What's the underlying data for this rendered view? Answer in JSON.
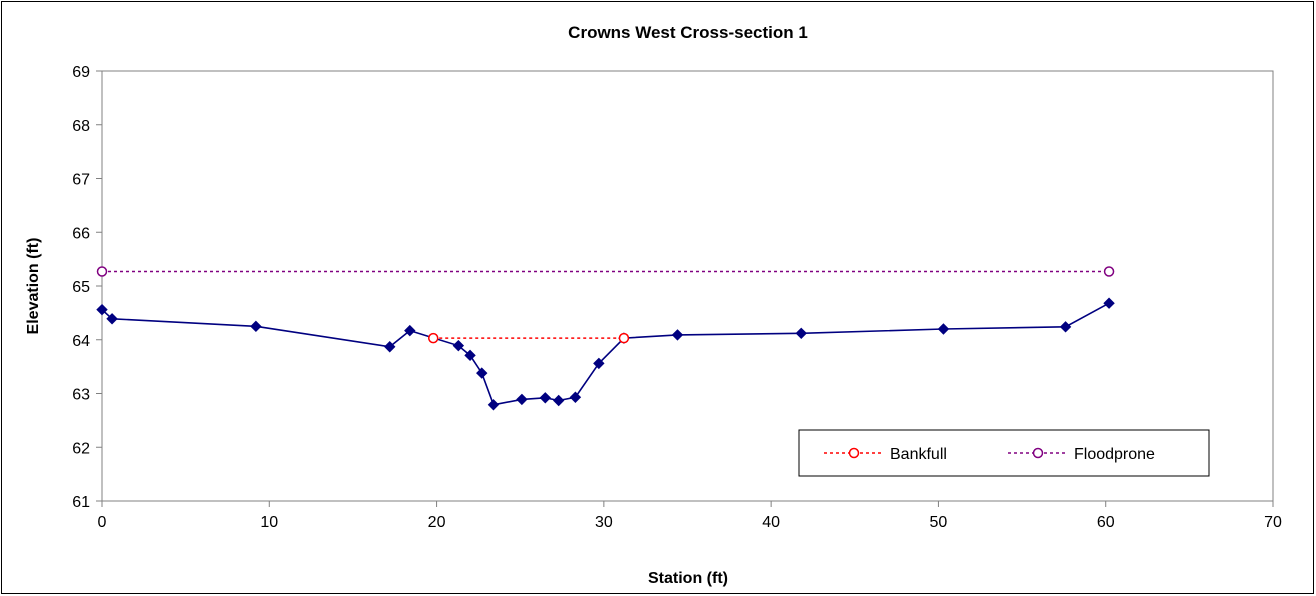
{
  "chart_data": {
    "type": "line",
    "title": "Crowns West Cross-section 1",
    "xlabel": "Station (ft)",
    "ylabel": "Elevation (ft)",
    "xlim": [
      0,
      70
    ],
    "ylim": [
      61,
      69
    ],
    "xticks": [
      0,
      10,
      20,
      30,
      40,
      50,
      60,
      70
    ],
    "yticks": [
      61,
      62,
      63,
      64,
      65,
      66,
      67,
      68,
      69
    ],
    "grid": false,
    "legend_position": "bottom-right",
    "series": [
      {
        "color": "#000080",
        "style": "solid-diamond",
        "x": [
          0.0,
          0.6,
          9.2,
          17.2,
          18.4,
          21.3,
          22.0,
          22.7,
          23.4,
          25.1,
          26.5,
          27.3,
          28.3,
          29.7,
          31.2,
          34.4,
          41.8,
          50.3,
          57.6,
          60.2
        ],
        "y": [
          64.56,
          64.39,
          64.25,
          63.87,
          64.17,
          63.89,
          63.71,
          63.38,
          62.79,
          62.89,
          62.92,
          62.87,
          62.93,
          63.56,
          64.03,
          64.09,
          64.12,
          64.2,
          64.24,
          64.68
        ]
      },
      {
        "name": "Bankfull",
        "color": "#ff0000",
        "style": "dotted-circle",
        "x": [
          19.8,
          31.2
        ],
        "y": [
          64.03,
          64.03
        ]
      },
      {
        "name": "Floodprone",
        "color": "#800080",
        "style": "dotted-circle",
        "x": [
          0.0,
          60.2
        ],
        "y": [
          65.27,
          65.27
        ]
      }
    ]
  }
}
